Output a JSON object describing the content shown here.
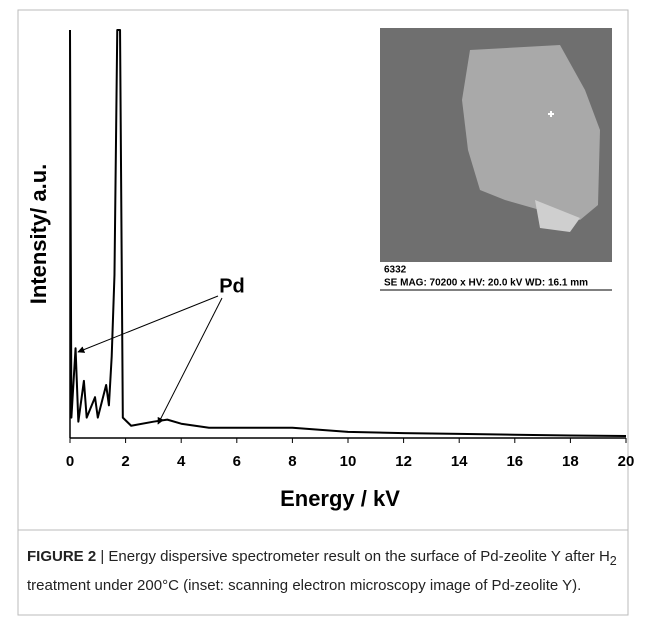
{
  "chart_data": {
    "type": "line",
    "x_label": "Energy / kV",
    "y_label": "Intensity/ a.u.",
    "x": [
      0,
      0.05,
      0.2,
      0.3,
      0.5,
      0.6,
      0.9,
      1.0,
      1.3,
      1.4,
      1.5,
      1.6,
      1.7,
      1.8,
      1.9,
      2.2,
      3,
      3.5,
      4,
      5,
      6,
      8,
      10,
      12,
      14,
      16,
      18,
      20
    ],
    "series": [
      {
        "color": "#000000",
        "values": [
          100,
          5,
          22,
          4,
          14,
          5,
          10,
          5,
          13,
          8,
          20,
          40,
          100,
          100,
          5,
          3,
          4,
          4.5,
          3.5,
          2.5,
          2.5,
          2.5,
          1.5,
          1.2,
          1,
          0.8,
          0.6,
          0.5
        ]
      }
    ],
    "xlim": [
      0,
      20
    ],
    "xticks": [
      0,
      2,
      4,
      6,
      8,
      10,
      12,
      14,
      16,
      18,
      20
    ],
    "ylim": [
      0,
      100
    ],
    "grid": false,
    "annotations": [
      "Pd"
    ]
  },
  "inset": {
    "id": "6332",
    "text": "SE  MAG: 70200 x  HV: 20.0 kV  WD: 16.1 mm"
  },
  "caption": {
    "label": "FIGURE 2",
    "text_before": " | Energy dispersive spectrometer result on the surface of Pd-zeolite Y after H",
    "subscript": "2",
    "text_after": " treatment under 200°C (inset: scanning electron microscopy image of Pd-zeolite Y)."
  }
}
